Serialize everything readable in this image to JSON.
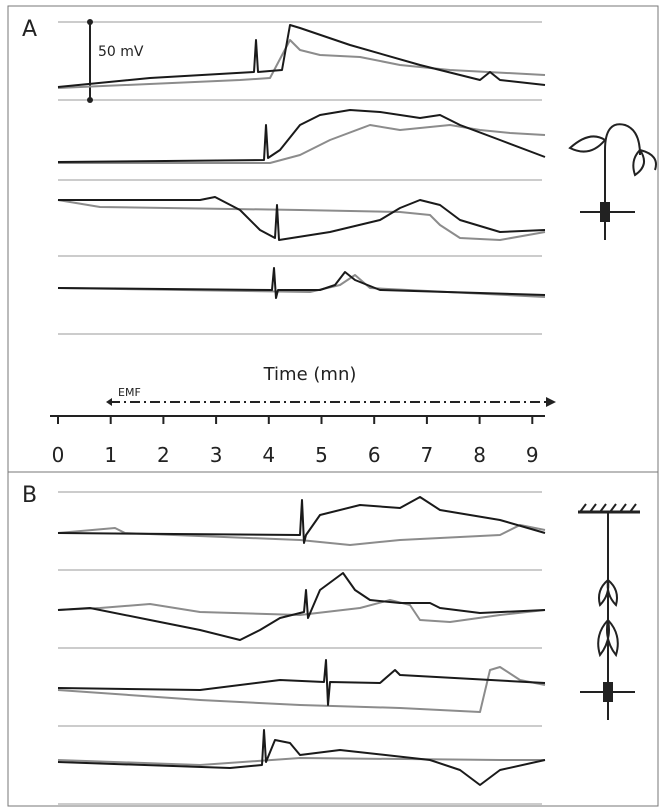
{
  "panels": [
    {
      "label": "A"
    },
    {
      "label": "B"
    }
  ],
  "scale_bar": "50 mV",
  "time_axis": {
    "title": "Time (mn)",
    "ticks": [
      0,
      1,
      2,
      3,
      4,
      5,
      6,
      7,
      8,
      9
    ]
  },
  "stimulus": "EMF"
}
